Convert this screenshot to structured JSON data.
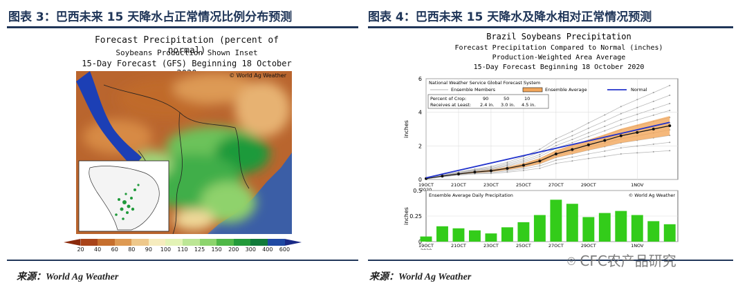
{
  "left": {
    "figure_title": "图表 3：巴西未来 15 天降水占正常情况比例分布预测",
    "map_title": "Forecast Precipitation (percent of normal)",
    "map_subtitle": "Soybeans Production Shown Inset",
    "map_forecast": "15-Day Forecast (GFS) Beginning 18 October 2020",
    "credit": "© World Ag Weather",
    "colorbar": {
      "labels": [
        "20",
        "40",
        "60",
        "80",
        "90",
        "100",
        "110",
        "125",
        "150",
        "200",
        "300",
        "400",
        "600"
      ],
      "colors": [
        "#8b2a0c",
        "#a9441a",
        "#c66f2e",
        "#de9a53",
        "#eec88b",
        "#f6ecbe",
        "#e3f3b6",
        "#bce696",
        "#8cd46d",
        "#4fb848",
        "#239a3a",
        "#0f7a3a",
        "#1f49a3",
        "#1a2a86"
      ]
    },
    "source": "来源：World Ag Weather"
  },
  "right": {
    "figure_title": "图表 4：巴西未来 15 天降水及降水相对正常情况预测",
    "source": "来源：World Ag Weather",
    "watermark": "CFC农产品研究",
    "chart_data": [
      {
        "type": "line",
        "title": "Brazil Soybeans Precipitation",
        "subtitle": [
          "Forecast Precipitation Compared to Normal (inches)",
          "Production-Weighted Area Average",
          "15-Day Forecast Beginning 18 October 2020"
        ],
        "model": "National Weather Service Global Forecast System",
        "ylabel": "inches",
        "ylim": [
          0,
          6
        ],
        "yticks": [
          "0",
          "2",
          "4",
          "6"
        ],
        "x_ticks": [
          "19OCT 2020",
          "21OCT",
          "23OCT",
          "25OCT",
          "27OCT",
          "29OCT",
          "1NOV"
        ],
        "x_days": [
          0,
          2,
          4,
          6,
          8,
          10,
          13
        ],
        "legend": [
          "Ensemble Members",
          "Ensemble Average",
          "Normal"
        ],
        "colors": {
          "members": "#b9b9b9",
          "average": "#111111",
          "band": "#f2a65a",
          "normal": "#2233cc"
        },
        "crop_table": {
          "row1_label": "Percent of Crop:",
          "row1": [
            "90",
            "50",
            "10"
          ],
          "row2_label": "Receives at Least:",
          "row2": [
            "2.4 in.",
            "3.0 in.",
            "4.5 in."
          ]
        },
        "series": [
          {
            "name": "Ensemble Average",
            "x": [
              0,
              1,
              2,
              3,
              4,
              5,
              6,
              7,
              8,
              9,
              10,
              11,
              12,
              13,
              14,
              15
            ],
            "y": [
              0.05,
              0.2,
              0.33,
              0.44,
              0.52,
              0.66,
              0.85,
              1.1,
              1.52,
              1.78,
              2.06,
              2.32,
              2.6,
              2.8,
              3.0,
              3.2
            ]
          },
          {
            "name": "Normal",
            "x": [
              0,
              15
            ],
            "y": [
              0.1,
              3.4
            ]
          }
        ]
      },
      {
        "type": "bar",
        "title": "Ensemble Average Daily Precipitation",
        "credit": "© World Ag Weather",
        "ylabel": "inches",
        "ylim": [
          0,
          0.5
        ],
        "yticks": [
          "0",
          "0.25",
          "0.5"
        ],
        "x_ticks": [
          "19OCT 2020",
          "21OCT",
          "23OCT",
          "25OCT",
          "27OCT",
          "29OCT",
          "1NOV"
        ],
        "x_days": [
          0,
          2,
          4,
          6,
          8,
          10,
          13
        ],
        "color": "#33cc1a",
        "values": [
          0.05,
          0.15,
          0.13,
          0.11,
          0.08,
          0.14,
          0.19,
          0.26,
          0.41,
          0.37,
          0.24,
          0.28,
          0.3,
          0.26,
          0.2,
          0.17
        ]
      }
    ]
  }
}
